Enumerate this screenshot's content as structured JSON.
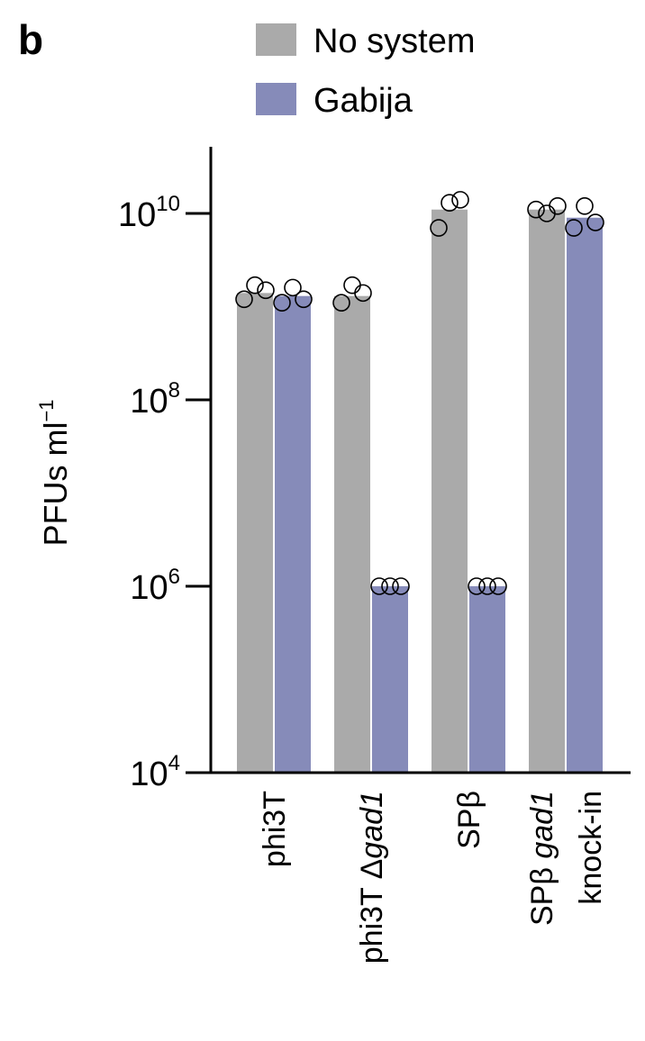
{
  "panel_letter": "b",
  "chart_data": {
    "type": "bar",
    "title": "",
    "xlabel": "",
    "ylabel": "PFUs ml",
    "ylabel_exponent": "−1",
    "yscale": "log",
    "ylim": [
      10000,
      50000000000
    ],
    "yticks": [
      {
        "value": 10000,
        "base": "10",
        "exp": "4"
      },
      {
        "value": 1000000,
        "base": "10",
        "exp": "6"
      },
      {
        "value": 100000000,
        "base": "10",
        "exp": "8"
      },
      {
        "value": 10000000000,
        "base": "10",
        "exp": "10"
      }
    ],
    "grid": false,
    "legend_position": "top",
    "categories": [
      {
        "lines": [
          [
            {
              "text": "phi3T",
              "italic": false
            }
          ]
        ]
      },
      {
        "lines": [
          [
            {
              "text": "phi3T Δ",
              "italic": false
            },
            {
              "text": "gad1",
              "italic": true
            }
          ]
        ]
      },
      {
        "lines": [
          [
            {
              "text": "SPβ",
              "italic": false
            }
          ]
        ]
      },
      {
        "lines": [
          [
            {
              "text": "SPβ ",
              "italic": false
            },
            {
              "text": "gad1",
              "italic": true
            }
          ],
          [
            {
              "text": "knock-in",
              "italic": false
            }
          ]
        ]
      }
    ],
    "series": [
      {
        "name": "No system",
        "color": "#aaaaaa",
        "values": [
          1400000000,
          1300000000,
          11000000000,
          11000000000
        ],
        "points": [
          [
            1200000000,
            1700000000,
            1500000000
          ],
          [
            1100000000,
            1700000000,
            1400000000
          ],
          [
            7000000000,
            13000000000,
            14000000000
          ],
          [
            11000000000,
            10000000000,
            12000000000
          ]
        ]
      },
      {
        "name": "Gabija",
        "color": "#868bb9",
        "values": [
          1300000000,
          1000000,
          1000000,
          9000000000
        ],
        "points": [
          [
            1100000000,
            1600000000,
            1200000000
          ],
          [
            1000000,
            1000000,
            1000000
          ],
          [
            1000000,
            1000000,
            1000000
          ],
          [
            7000000000,
            12000000000,
            8000000000
          ]
        ]
      }
    ]
  }
}
